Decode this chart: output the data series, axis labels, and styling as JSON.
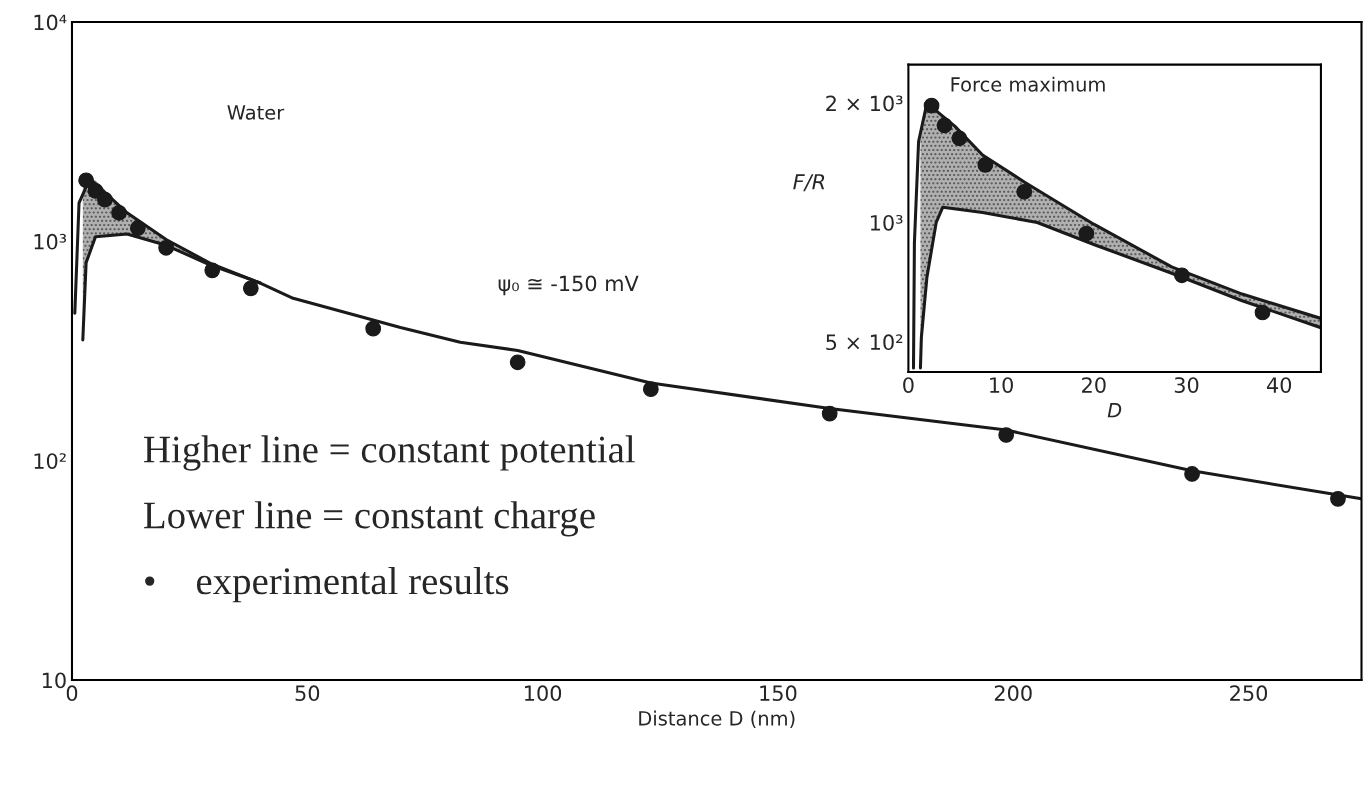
{
  "chart_data": [
    {
      "type": "line",
      "xlabel": "Distance D (nm)",
      "xlim": [
        0,
        274
      ],
      "xticks": [
        0,
        50,
        100,
        150,
        200,
        250
      ],
      "ylim": [
        10,
        10000
      ],
      "log": true,
      "yticks": [
        {
          "value": 10,
          "label": "10"
        },
        {
          "value": 100,
          "label": "10²"
        },
        {
          "value": 1000,
          "label": "10³"
        },
        {
          "value": 10000,
          "label": "10⁴"
        }
      ],
      "annotations": [
        "Water",
        "ψ₀ ≅ -150 mV",
        "Higher line = constant potential",
        "Lower line = constant charge",
        "•    experimental results"
      ],
      "series": [
        {
          "color": "#1a1a1a",
          "x": [
            0.6,
            1.5,
            3.8,
            11.7,
            20,
            29.4,
            40,
            47,
            69.8,
            82.5,
            94.7,
            123,
            161,
            198.5,
            238,
            274
          ],
          "values": [
            470,
            1500,
            1935,
            1350,
            1020,
            794,
            646,
            550,
            405,
            347,
            318,
            226,
            173,
            138,
            90,
            67
          ]
        },
        {
          "color": "#1a1a1a",
          "x": [
            2.3,
            3,
            5,
            11.7,
            20,
            29.4,
            40
          ],
          "values": [
            355,
            800,
            1050,
            1080,
            960,
            780,
            646
          ],
          "lower": [
            355,
            800,
            1050,
            1080,
            960,
            780,
            646
          ],
          "upper": [
            1750,
            1850,
            1900,
            1350,
            1020,
            794,
            646
          ]
        },
        {
          "type": "scatter",
          "color": "#1a1a1a",
          "marker": "circle",
          "x": [
            3,
            5,
            7,
            10,
            14,
            20,
            29.8,
            38,
            64,
            94.7,
            123,
            161,
            198.5,
            238,
            269
          ],
          "values": [
            1900,
            1700,
            1550,
            1350,
            1150,
            935,
            738,
            611,
            400,
            281,
            212,
            164,
            131,
            87,
            67
          ]
        }
      ]
    },
    {
      "type": "line",
      "xlabel": "D",
      "ylabel": "F/R",
      "xlim": [
        0,
        44.5
      ],
      "xticks": [
        0,
        10,
        20,
        30,
        40
      ],
      "ylim": [
        420,
        2500
      ],
      "log": true,
      "yticks": [
        {
          "value": 500,
          "label": "5 × 10²"
        },
        {
          "value": 1000,
          "label": "10³"
        },
        {
          "value": 2000,
          "label": "2 × 10³"
        }
      ],
      "annotations": [
        "Force maximum"
      ],
      "series": [
        {
          "color": "#1a1a1a",
          "x": [
            0.55,
            0.65,
            1.1,
            2,
            5,
            8,
            12.5,
            20,
            28.4,
            36,
            44.5
          ],
          "values": [
            430,
            890,
            1600,
            2000,
            1750,
            1480,
            1265,
            990,
            773,
            660,
            573
          ]
        },
        {
          "color": "#1a1a1a",
          "x": [
            1.3,
            1.4,
            2,
            3,
            3.7,
            8,
            13.9,
            20,
            28.4,
            36,
            44.5
          ],
          "values": [
            430,
            513,
            728,
            1000,
            1092,
            1060,
            1000,
            880,
            745,
            635,
            543
          ],
          "lower": [
            430,
            513,
            728,
            1000,
            1092,
            1060,
            1000,
            880,
            745,
            635,
            543
          ],
          "upper": [
            1700,
            1750,
            2000,
            1950,
            1850,
            1480,
            1210,
            990,
            773,
            660,
            573
          ]
        },
        {
          "type": "scatter",
          "color": "#1a1a1a",
          "marker": "circle",
          "x": [
            2.5,
            3.9,
            5.5,
            8.3,
            12.5,
            19.2,
            29.5,
            38.2
          ],
          "values": [
            1970,
            1757,
            1630,
            1397,
            1195,
            938,
            736,
            593
          ]
        }
      ]
    }
  ]
}
